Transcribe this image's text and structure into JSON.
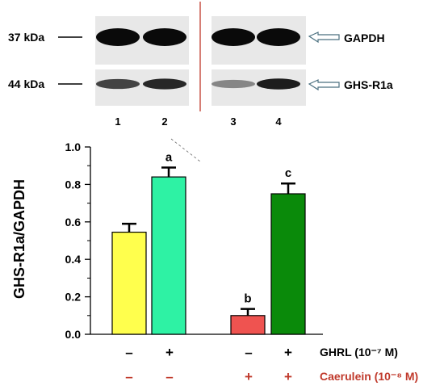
{
  "blot": {
    "markers": [
      "37 kDa",
      "44 kDa"
    ],
    "proteins": [
      "GAPDH",
      "GHS-R1a"
    ],
    "lanes": [
      "1",
      "2",
      "3",
      "4"
    ],
    "band_intensity": {
      "GAPDH": [
        1.0,
        1.0,
        1.0,
        1.0
      ],
      "GHS-R1a": [
        0.7,
        0.85,
        0.35,
        0.9
      ]
    }
  },
  "chart_data": {
    "type": "bar",
    "ylabel": "GHS-R1a/GAPDH",
    "ylim": [
      0,
      1.0
    ],
    "yticks": [
      "0.0",
      "0.2",
      "0.4",
      "0.6",
      "0.8",
      "1.0"
    ],
    "ytick_values": [
      0,
      0.2,
      0.4,
      0.6,
      0.8,
      1.0
    ],
    "values": [
      0.545,
      0.84,
      0.1,
      0.75
    ],
    "errors": [
      0.045,
      0.05,
      0.035,
      0.055
    ],
    "significance": [
      "",
      "a",
      "b",
      "c"
    ],
    "colors": [
      "#ffff4d",
      "#2ef2a4",
      "#ef5350",
      "#0a8a0a"
    ],
    "treatments": [
      {
        "label": "GHRL (10⁻⁷ M)",
        "signs": [
          "–",
          "+",
          "–",
          "+"
        ],
        "color": "#000000"
      },
      {
        "label": "Caerulein (10⁻⁸ M)",
        "signs": [
          "–",
          "–",
          "+",
          "+"
        ],
        "color": "#c0392b"
      }
    ]
  }
}
